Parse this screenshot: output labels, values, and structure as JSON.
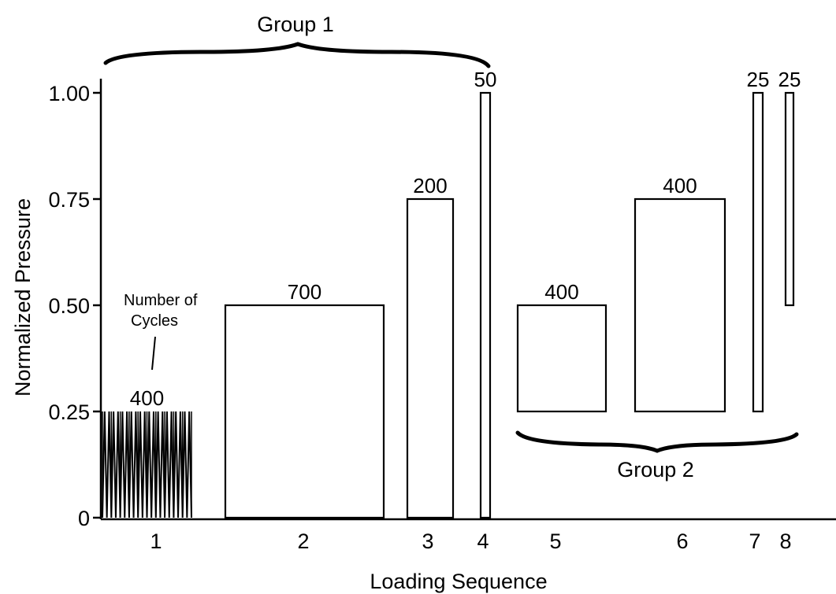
{
  "chart_data": {
    "type": "bar",
    "title": "",
    "xlabel": "Loading Sequence",
    "ylabel": "Normalized Pressure",
    "ylim": [
      0,
      1.0
    ],
    "y_ticks": [
      "0",
      "0.25",
      "0.50",
      "0.75",
      "1.00"
    ],
    "grid": false,
    "segments": [
      {
        "step": "1",
        "type": "cyclic",
        "min": 0,
        "max": 0.25,
        "cycles": "400"
      },
      {
        "step": "2",
        "type": "block",
        "min": 0,
        "max": 0.5,
        "cycles": "700"
      },
      {
        "step": "3",
        "type": "block",
        "min": 0,
        "max": 0.75,
        "cycles": "200"
      },
      {
        "step": "4",
        "type": "block",
        "min": 0,
        "max": 1.0,
        "cycles": "50"
      },
      {
        "step": "5",
        "type": "block",
        "min": 0.25,
        "max": 0.5,
        "cycles": "400"
      },
      {
        "step": "6",
        "type": "block",
        "min": 0.25,
        "max": 0.75,
        "cycles": "400"
      },
      {
        "step": "7",
        "type": "block",
        "min": 0.25,
        "max": 1.0,
        "cycles": "25"
      },
      {
        "step": "8",
        "type": "block",
        "min": 0.5,
        "max": 1.0,
        "cycles": "25"
      }
    ],
    "groups": [
      {
        "label": "Group 1",
        "from_step": 1,
        "to_step": 4
      },
      {
        "label": "Group 2",
        "from_step": 5,
        "to_step": 8
      }
    ],
    "annotation": {
      "line1": "Number of",
      "line2": "Cycles"
    }
  }
}
